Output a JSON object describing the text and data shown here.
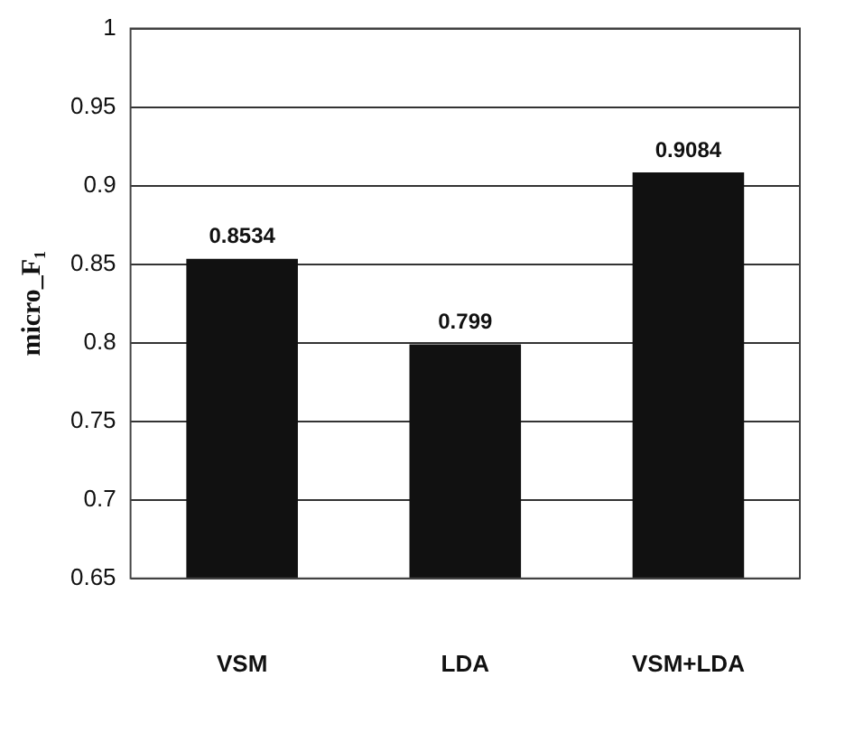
{
  "chart_data": {
    "type": "bar",
    "ylabel": "micro_F₁",
    "categories": [
      "VSM",
      "LDA",
      "VSM+LDA"
    ],
    "values": [
      0.8534,
      0.799,
      0.9084
    ],
    "color": "#111111",
    "ylim": [
      0.65,
      1
    ],
    "yticks": [
      0.65,
      0.7,
      0.75,
      0.8,
      0.85,
      0.9,
      0.95,
      1
    ],
    "grid": "y",
    "data_labels": true,
    "legend": false
  }
}
